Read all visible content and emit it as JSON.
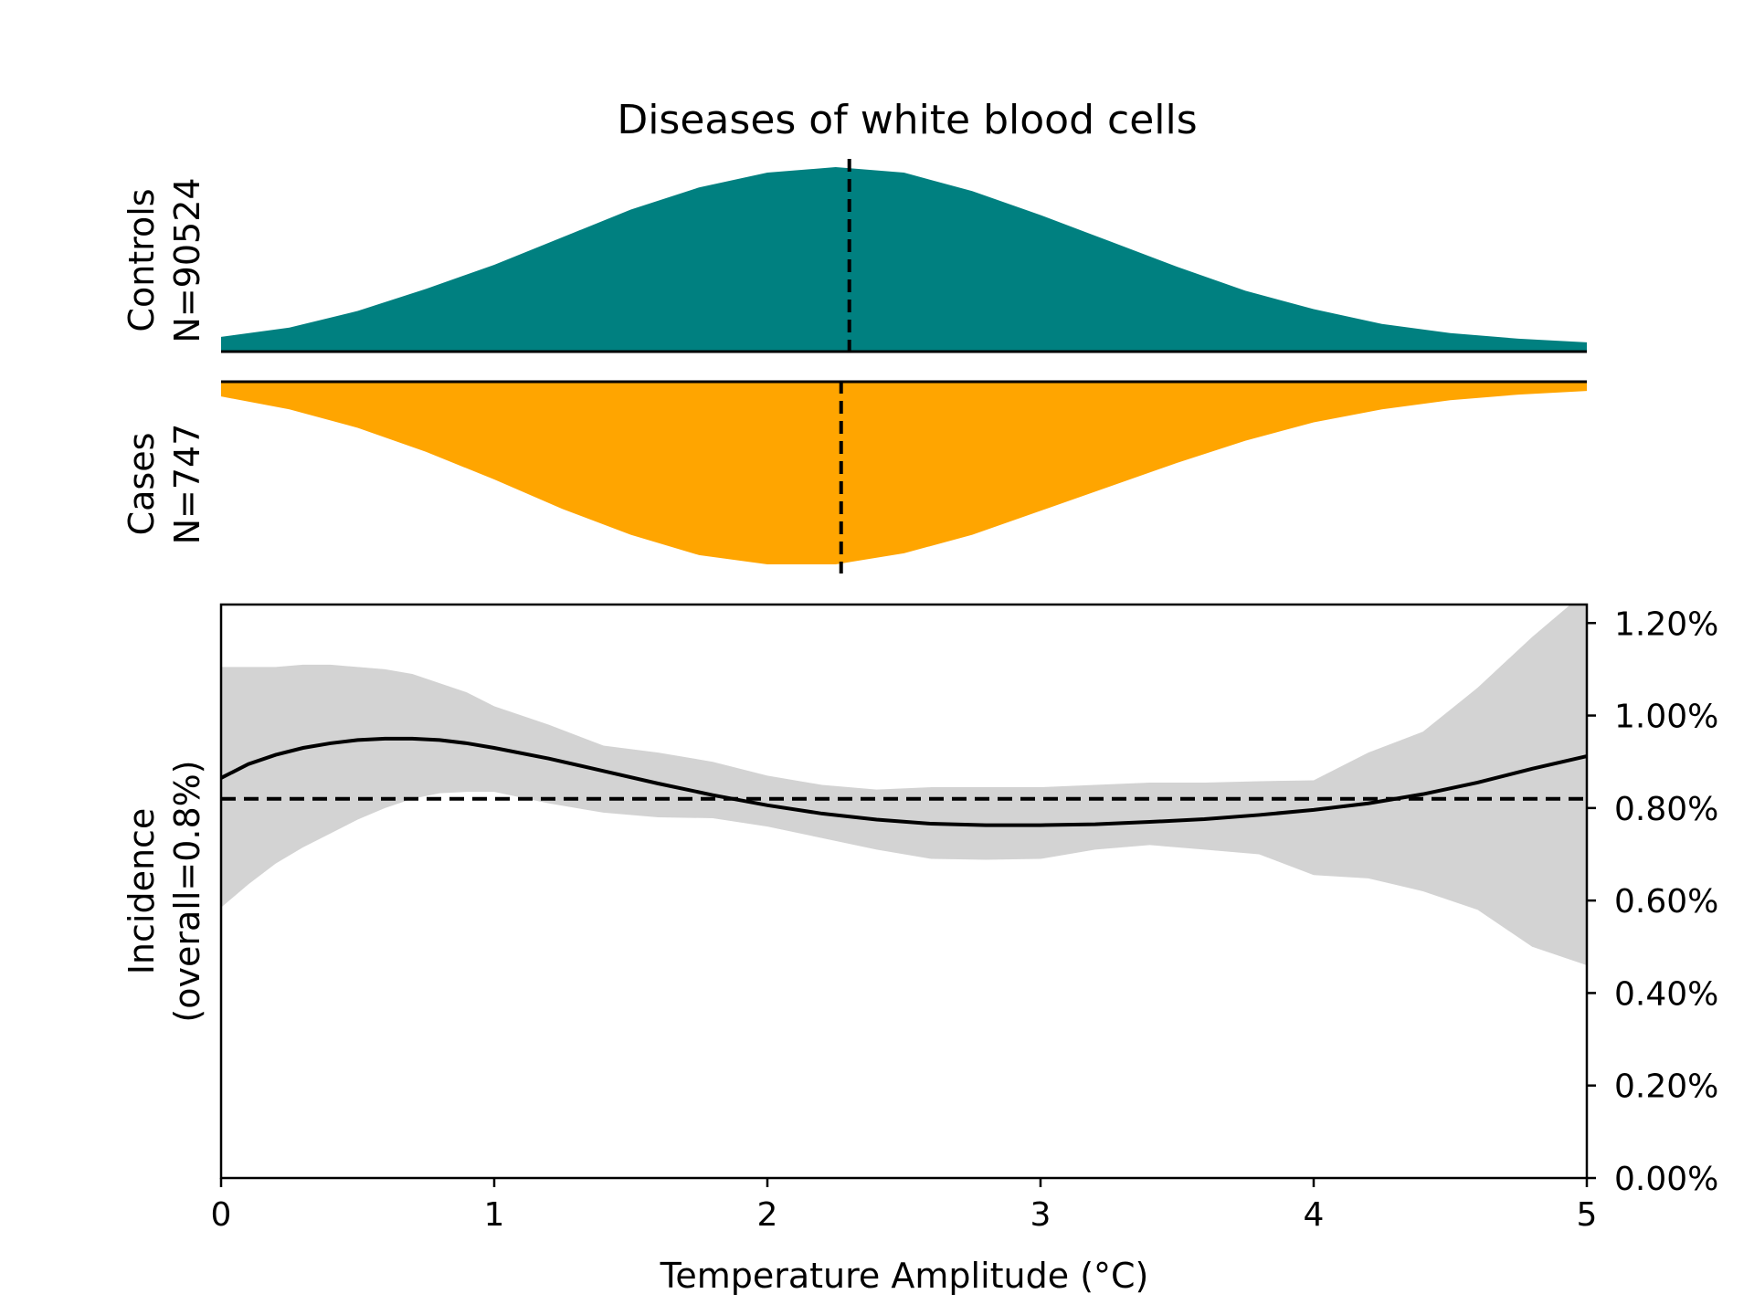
{
  "chart_data": {
    "title": "Diseases of white blood cells",
    "xlabel": "Temperature Amplitude (°C)",
    "xlim": [
      0,
      5
    ],
    "x_ticks": [
      0,
      1,
      2,
      3,
      4,
      5
    ],
    "colors": {
      "controls": "#008080",
      "cases": "#ffa500",
      "ci": "#d3d3d3",
      "line": "#000000"
    },
    "controls": {
      "type": "area",
      "label_line1": "Controls",
      "label_line2": "N=90524",
      "median": 2.3,
      "x": [
        0,
        0.25,
        0.5,
        0.75,
        1.0,
        1.25,
        1.5,
        1.75,
        2.0,
        2.25,
        2.5,
        2.75,
        3.0,
        3.25,
        3.5,
        3.75,
        4.0,
        4.25,
        4.5,
        4.75,
        5.0
      ],
      "density": [
        0.08,
        0.13,
        0.22,
        0.34,
        0.47,
        0.62,
        0.77,
        0.89,
        0.97,
        1.0,
        0.97,
        0.87,
        0.74,
        0.6,
        0.46,
        0.33,
        0.23,
        0.15,
        0.1,
        0.07,
        0.05
      ]
    },
    "cases": {
      "type": "area",
      "label_line1": "Cases",
      "label_line2": "N=747",
      "median": 2.27,
      "x": [
        0,
        0.25,
        0.5,
        0.75,
        1.0,
        1.25,
        1.5,
        1.75,
        2.0,
        2.25,
        2.5,
        2.75,
        3.0,
        3.25,
        3.5,
        3.75,
        4.0,
        4.25,
        4.5,
        4.75,
        5.0
      ],
      "density": [
        0.08,
        0.15,
        0.25,
        0.38,
        0.53,
        0.69,
        0.83,
        0.94,
        0.99,
        0.99,
        0.93,
        0.83,
        0.7,
        0.57,
        0.44,
        0.32,
        0.22,
        0.15,
        0.1,
        0.07,
        0.05
      ]
    },
    "incidence": {
      "type": "line",
      "ylabel_line1": "Incidence",
      "ylabel_line2": "(overall=0.8%)",
      "ylim": [
        0,
        1.24
      ],
      "y_ticks": [
        0,
        0.2,
        0.4,
        0.6,
        0.8,
        1.0,
        1.2
      ],
      "y_tick_labels": [
        "0.00%",
        "0.20%",
        "0.40%",
        "0.60%",
        "0.80%",
        "1.00%",
        "1.20%"
      ],
      "overall": 0.82,
      "x": [
        0,
        0.1,
        0.2,
        0.3,
        0.4,
        0.5,
        0.6,
        0.7,
        0.8,
        0.9,
        1.0,
        1.2,
        1.4,
        1.6,
        1.8,
        2.0,
        2.2,
        2.4,
        2.6,
        2.8,
        3.0,
        3.2,
        3.4,
        3.6,
        3.8,
        4.0,
        4.2,
        4.4,
        4.6,
        4.8,
        5.0
      ],
      "y": [
        0.865,
        0.895,
        0.915,
        0.93,
        0.94,
        0.947,
        0.95,
        0.95,
        0.947,
        0.94,
        0.93,
        0.907,
        0.88,
        0.853,
        0.828,
        0.806,
        0.788,
        0.775,
        0.766,
        0.763,
        0.763,
        0.765,
        0.77,
        0.776,
        0.785,
        0.796,
        0.81,
        0.83,
        0.855,
        0.885,
        0.912
      ],
      "upper": [
        1.105,
        1.105,
        1.105,
        1.11,
        1.11,
        1.105,
        1.1,
        1.09,
        1.07,
        1.05,
        1.02,
        0.98,
        0.935,
        0.92,
        0.9,
        0.87,
        0.85,
        0.84,
        0.845,
        0.845,
        0.845,
        0.85,
        0.855,
        0.855,
        0.858,
        0.86,
        0.92,
        0.965,
        1.06,
        1.17,
        1.27
      ],
      "lower": [
        0.585,
        0.635,
        0.68,
        0.715,
        0.745,
        0.775,
        0.8,
        0.82,
        0.832,
        0.835,
        0.835,
        0.81,
        0.79,
        0.78,
        0.778,
        0.76,
        0.735,
        0.71,
        0.69,
        0.688,
        0.69,
        0.71,
        0.72,
        0.71,
        0.7,
        0.655,
        0.648,
        0.62,
        0.58,
        0.5,
        0.46
      ]
    }
  }
}
